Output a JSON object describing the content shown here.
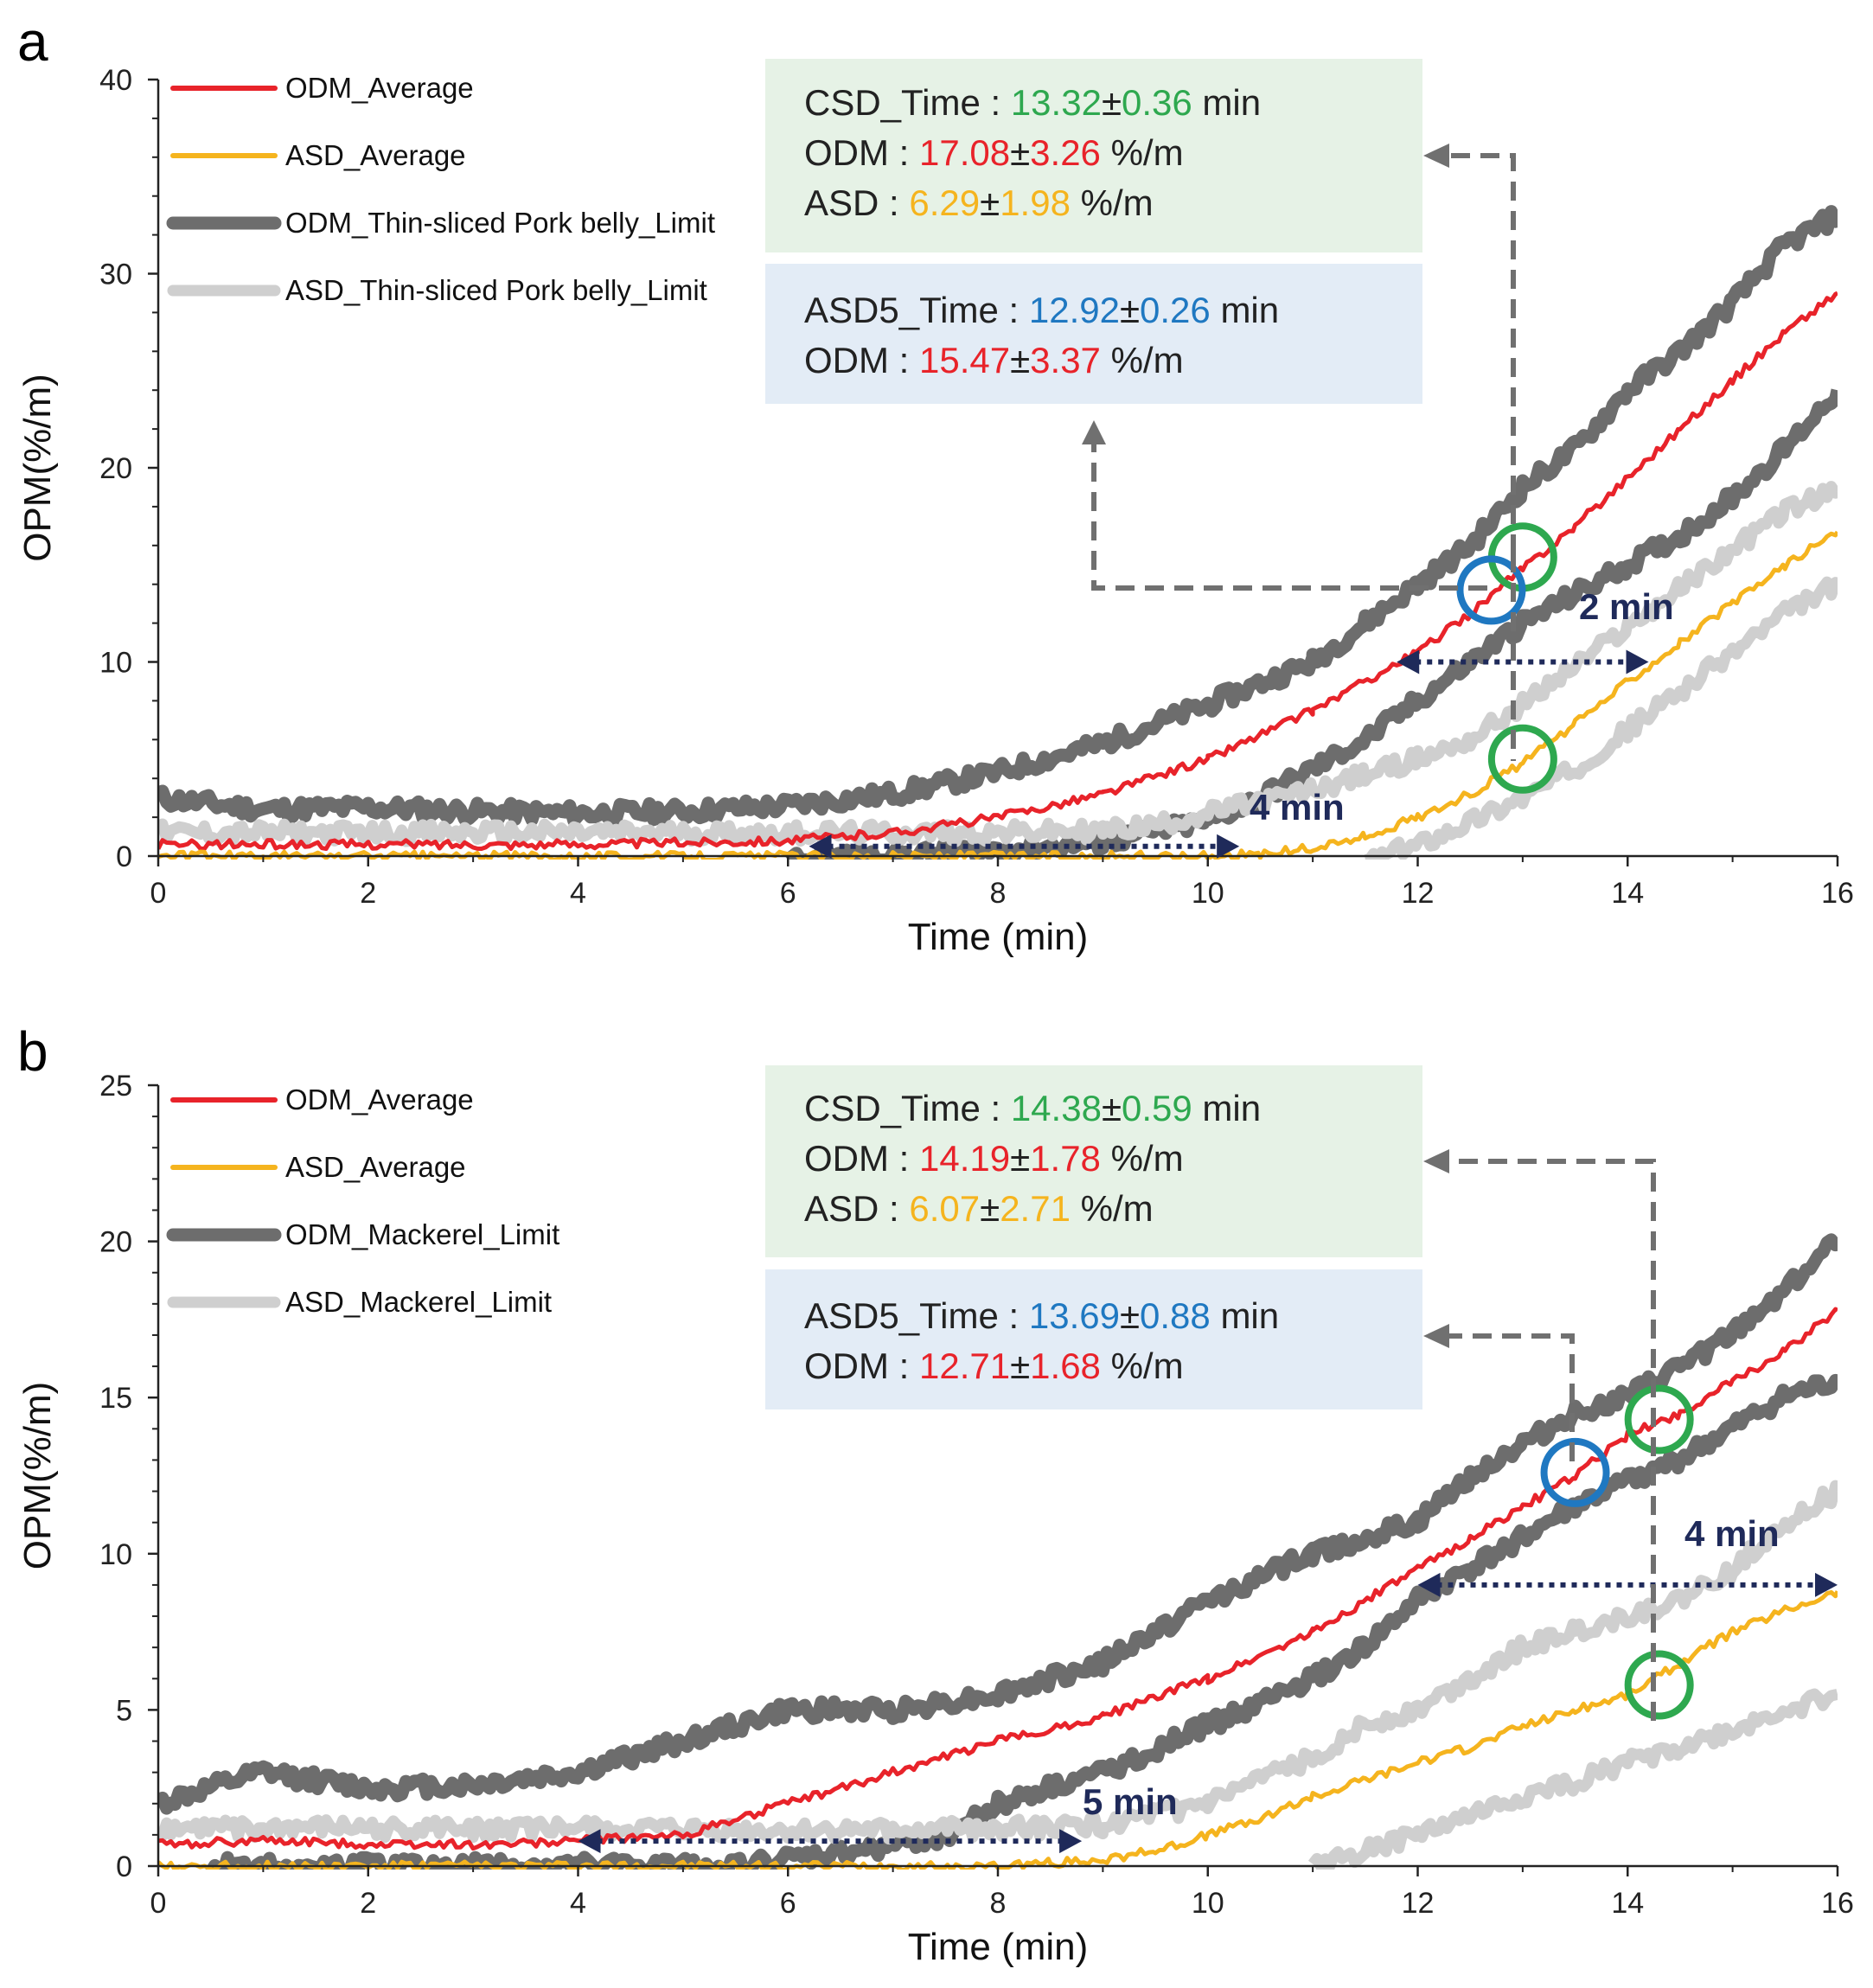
{
  "colors": {
    "odm_avg": "#e8232a",
    "asd_avg": "#f5b41e",
    "odm_limit": "#6d6d6d",
    "asd_limit": "#cfcfcf",
    "green": "#2ea84f",
    "blue": "#1f78c1",
    "navy": "#1f2a5a",
    "box_green": "#e6f2e6",
    "box_blue": "#e3ecf6",
    "dashed": "#707070"
  },
  "chart_data": [
    {
      "panel_label": "a",
      "type": "line",
      "xlabel": "Time (min)",
      "ylabel": "OPM(%/m)",
      "xlim": [
        0,
        16
      ],
      "ylim": [
        0,
        40
      ],
      "xticks": [
        0,
        2,
        4,
        6,
        8,
        10,
        12,
        14,
        16
      ],
      "yticks": [
        0,
        10,
        20,
        30,
        40
      ],
      "legend": [
        "ODM_Average",
        "ASD_Average",
        "ODM_Thin-sliced Pork belly_Limit",
        "ASD_Thin-sliced Pork belly_Limit"
      ],
      "series": [
        {
          "name": "ODM_Average",
          "x": [
            0,
            2,
            4,
            6,
            7,
            8,
            9,
            10,
            11,
            12,
            12.5,
            13,
            13.5,
            14,
            14.5,
            15,
            15.5,
            16
          ],
          "y": [
            0.6,
            0.6,
            0.6,
            0.8,
            1.2,
            2.0,
            3.2,
            5.0,
            7.5,
            10.5,
            12.5,
            14.8,
            17.0,
            19.5,
            22.0,
            24.5,
            27.0,
            29.0
          ]
        },
        {
          "name": "ASD_Average",
          "x": [
            0,
            2,
            4,
            6,
            8,
            10,
            10.5,
            11,
            11.5,
            12,
            12.5,
            13,
            13.5,
            14,
            14.5,
            15,
            15.5,
            16
          ],
          "y": [
            0,
            0,
            0,
            0,
            0,
            0,
            0.1,
            0.4,
            1.0,
            2.0,
            3.2,
            4.8,
            6.8,
            9.0,
            11.0,
            13.0,
            15.0,
            16.7
          ]
        },
        {
          "name": "ODM_Thin-sliced Pork belly_Limit",
          "x": [
            0,
            1,
            2,
            3,
            4,
            5,
            6,
            7,
            8,
            9,
            10,
            11,
            11.5,
            12,
            12.5,
            13,
            13.5,
            14,
            14.5,
            15,
            15.5,
            16
          ],
          "y": [
            3.0,
            2.4,
            2.5,
            2.3,
            2.2,
            2.3,
            2.6,
            3.2,
            4.3,
            5.8,
            7.8,
            10.0,
            12.0,
            14.0,
            16.0,
            19.0,
            21.0,
            24.0,
            26.0,
            28.5,
            31.5,
            33.0
          ]
        },
        {
          "name": "ODM_Thin-sliced Pork belly_Limit_lower",
          "x": [
            6,
            7,
            8,
            9,
            10,
            10.5,
            11,
            11.5,
            12,
            12.5,
            13,
            13.5,
            14,
            14.5,
            15,
            15.5,
            16
          ],
          "y": [
            -0.2,
            0,
            0.3,
            0.7,
            1.8,
            3.0,
            4.5,
            6.0,
            8.0,
            10.0,
            12.0,
            13.5,
            15.0,
            16.5,
            18.5,
            21.0,
            24.0
          ]
        },
        {
          "name": "ASD_Thin-sliced Pork belly_Limit",
          "x": [
            0,
            2,
            4,
            6,
            8,
            9,
            9.5,
            10,
            10.5,
            11,
            11.5,
            12,
            12.5,
            13,
            13.5,
            14,
            14.5,
            15,
            15.5,
            16
          ],
          "y": [
            1.2,
            1.2,
            1.2,
            1.2,
            1.2,
            1.3,
            1.6,
            2.2,
            2.8,
            3.4,
            4.2,
            5.0,
            6.0,
            7.8,
            9.8,
            11.8,
            13.8,
            15.8,
            17.8,
            18.8
          ]
        },
        {
          "name": "ASD_Thin-sliced Pork belly_Limit_lower",
          "x": [
            11.5,
            12,
            12.5,
            13,
            13.5,
            14,
            14.5,
            15,
            15.5,
            16
          ],
          "y": [
            -0.3,
            0.6,
            1.8,
            3.0,
            4.5,
            6.5,
            8.5,
            10.5,
            12.5,
            14.0
          ]
        }
      ],
      "annotations": {
        "box_csd": {
          "line1": {
            "label": "CSD_Time : ",
            "mean": "13.32",
            "pm": "±",
            "sd": "0.36",
            "unit": " min"
          },
          "line2": {
            "label": "ODM : ",
            "mean": "17.08",
            "pm": "±",
            "sd": "3.26",
            "unit": " %/m"
          },
          "line3": {
            "label": "ASD : ",
            "mean": "6.29",
            "pm": "±",
            "sd": "1.98",
            "unit": " %/m"
          }
        },
        "box_asd5": {
          "line1": {
            "label": "ASD5_Time : ",
            "mean": "12.92",
            "pm": "±",
            "sd": "0.26",
            "unit": " min"
          },
          "line2": {
            "label": "ODM : ",
            "mean": "15.47",
            "pm": "±",
            "sd": "3.37",
            "unit": " %/m"
          }
        },
        "gaps": [
          {
            "text": "4 min",
            "x_start": 6.2,
            "x_end": 10.3,
            "y": 0.5
          },
          {
            "text": "2 min",
            "x_start": 11.8,
            "x_end": 14.2,
            "y": 10.0
          }
        ],
        "markers": [
          {
            "kind": "green",
            "x": 13.0,
            "y": 15.4
          },
          {
            "kind": "green",
            "x": 13.0,
            "y": 5.0
          },
          {
            "kind": "blue",
            "x": 12.7,
            "y": 13.7
          }
        ]
      }
    },
    {
      "panel_label": "b",
      "type": "line",
      "xlabel": "Time (min)",
      "ylabel": "OPM(%/m)",
      "xlim": [
        0,
        16
      ],
      "ylim": [
        0,
        25
      ],
      "xticks": [
        0,
        2,
        4,
        6,
        8,
        10,
        12,
        14,
        16
      ],
      "yticks": [
        0,
        5,
        10,
        15,
        20,
        25
      ],
      "legend": [
        "ODM_Average",
        "ASD_Average",
        "ODM_Mackerel_Limit",
        "ASD_Mackerel_Limit"
      ],
      "series": [
        {
          "name": "ODM_Average",
          "x": [
            0,
            1,
            2,
            3,
            4,
            5,
            6,
            7,
            8,
            9,
            10,
            11,
            12,
            12.5,
            13,
            13.5,
            14,
            14.5,
            15,
            15.5,
            16
          ],
          "y": [
            0.7,
            0.8,
            0.7,
            0.7,
            0.8,
            1.0,
            2.0,
            3.0,
            4.0,
            4.8,
            6.0,
            7.5,
            9.5,
            10.5,
            11.5,
            12.5,
            13.8,
            14.5,
            15.5,
            16.5,
            17.8
          ]
        },
        {
          "name": "ASD_Average",
          "x": [
            0,
            2,
            4,
            6,
            8,
            8.5,
            9,
            9.5,
            10,
            10.5,
            11,
            11.5,
            12,
            12.5,
            13,
            13.5,
            14,
            14.5,
            15,
            15.5,
            16
          ],
          "y": [
            0,
            0,
            0,
            0,
            0,
            0.1,
            0.2,
            0.5,
            1.0,
            1.5,
            2.2,
            2.8,
            3.3,
            3.8,
            4.5,
            5.0,
            5.5,
            6.5,
            7.5,
            8.2,
            8.8
          ]
        },
        {
          "name": "ODM_Mackerel_Limit",
          "x": [
            0,
            1,
            2,
            3,
            4,
            5,
            6,
            7,
            8,
            9,
            10,
            11,
            12,
            12.5,
            13,
            13.5,
            14,
            14.5,
            15,
            15.5,
            16
          ],
          "y": [
            2.0,
            3.0,
            2.5,
            2.6,
            3.0,
            4.0,
            5.0,
            5.0,
            5.5,
            6.5,
            8.5,
            10.0,
            11.0,
            12.5,
            13.5,
            14.5,
            15.0,
            16.0,
            17.0,
            18.5,
            20.0
          ]
        },
        {
          "name": "ODM_Mackerel_Limit_lower",
          "x": [
            0.5,
            4.5,
            5.5,
            6.5,
            7.5,
            8,
            9,
            10,
            11,
            11.5,
            12,
            12.5,
            13,
            13.5,
            14,
            14.5,
            15,
            15.5,
            16
          ],
          "y": [
            0,
            0,
            0,
            0.4,
            1.0,
            2.0,
            3.0,
            4.5,
            6.0,
            7.0,
            8.5,
            9.5,
            10.5,
            11.5,
            12.3,
            13.0,
            14.0,
            15.0,
            15.5
          ]
        },
        {
          "name": "ASD_Mackerel_Limit",
          "x": [
            0,
            2,
            4,
            6,
            8,
            9,
            10,
            11,
            11.5,
            12,
            12.5,
            13,
            13.5,
            14,
            14.5,
            15,
            15.5,
            16
          ],
          "y": [
            1.2,
            1.2,
            1.2,
            1.1,
            1.2,
            1.3,
            2.0,
            3.5,
            4.5,
            5.0,
            6.0,
            7.0,
            7.5,
            8.0,
            8.5,
            9.5,
            11.0,
            12.0
          ]
        },
        {
          "name": "ASD_Mackerel_Limit_lower",
          "x": [
            11,
            11.5,
            12,
            12.5,
            13,
            13.5,
            14,
            14.5,
            15,
            15.5,
            16
          ],
          "y": [
            0,
            0.5,
            1.0,
            1.6,
            2.2,
            2.7,
            3.3,
            3.8,
            4.3,
            5.0,
            5.5
          ]
        }
      ],
      "annotations": {
        "box_csd": {
          "line1": {
            "label": "CSD_Time : ",
            "mean": "14.38",
            "pm": "±",
            "sd": "0.59",
            "unit": " min"
          },
          "line2": {
            "label": "ODM : ",
            "mean": "14.19",
            "pm": "±",
            "sd": "1.78",
            "unit": " %/m"
          },
          "line3": {
            "label": "ASD : ",
            "mean": "6.07",
            "pm": "±",
            "sd": "2.71",
            "unit": " %/m"
          }
        },
        "box_asd5": {
          "line1": {
            "label": "ASD5_Time : ",
            "mean": "13.69",
            "pm": "±",
            "sd": "0.88",
            "unit": " min"
          },
          "line2": {
            "label": "ODM : ",
            "mean": "12.71",
            "pm": "±",
            "sd": "1.68",
            "unit": " %/m"
          }
        },
        "gaps": [
          {
            "text": "5 min",
            "x_start": 4.0,
            "x_end": 8.8,
            "y": 0.8
          },
          {
            "text": "4 min",
            "x_start": 12.0,
            "x_end": 16.0,
            "y": 9.0
          }
        ],
        "markers": [
          {
            "kind": "green",
            "x": 14.3,
            "y": 14.3
          },
          {
            "kind": "green",
            "x": 14.3,
            "y": 5.8
          },
          {
            "kind": "blue",
            "x": 13.5,
            "y": 12.6
          }
        ]
      }
    }
  ]
}
